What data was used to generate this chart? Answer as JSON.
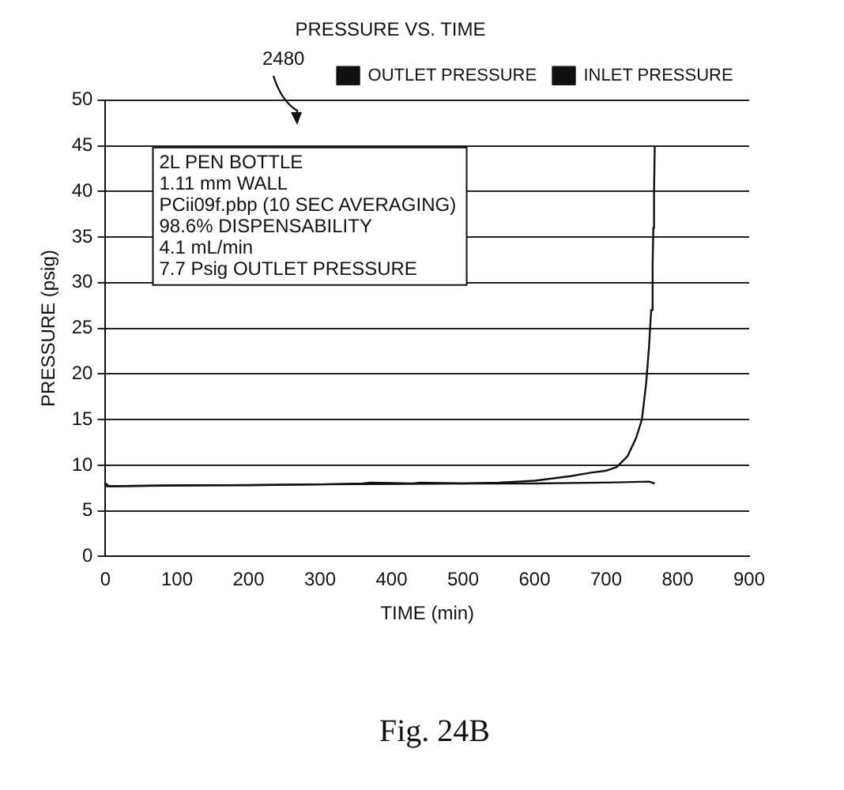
{
  "chart_data": {
    "type": "line",
    "title": "PRESSURE VS. TIME",
    "xlabel": "TIME (min)",
    "ylabel": "PRESSURE (psig)",
    "xlim": [
      0,
      900
    ],
    "xticks": [
      0,
      100,
      200,
      300,
      400,
      500,
      600,
      700,
      800,
      900
    ],
    "ylim": [
      0,
      50
    ],
    "yticks": [
      0,
      5,
      10,
      15,
      20,
      25,
      30,
      35,
      40,
      45,
      50
    ],
    "grid": "y",
    "legend": "top right",
    "line_style": "solid",
    "marker": "none",
    "series": [
      {
        "name": "OUTLET PRESSURE",
        "color": "#111111",
        "x": [
          0,
          5,
          100,
          200,
          300,
          360,
          370,
          430,
          440,
          500,
          600,
          700,
          760,
          768
        ],
        "values": [
          8.0,
          7.7,
          7.8,
          7.8,
          7.9,
          8.0,
          8.1,
          8.0,
          8.1,
          8.0,
          8.0,
          8.1,
          8.2,
          8.0
        ]
      },
      {
        "name": "INLET PRESSURE",
        "color": "#111111",
        "x": [
          0,
          300,
          500,
          550,
          600,
          650,
          680,
          700,
          715,
          730,
          742,
          750,
          756,
          760,
          763,
          765,
          766,
          767,
          768
        ],
        "values": [
          7.7,
          7.9,
          8.0,
          8.1,
          8.3,
          8.8,
          9.2,
          9.4,
          9.8,
          11,
          13,
          15,
          19,
          23,
          27,
          32,
          36,
          40,
          45
        ]
      }
    ],
    "annotations": [
      "2L PEN BOTTLE\n1.11 mm WALL\nPCii09f.pbp (10 SEC AVERAGING)\n98.6% DISPENSABILITY\n4.1 mL/min\n7.7 Psig OUTLET PRESSURE",
      "2480",
      "Fig. 24B"
    ]
  }
}
